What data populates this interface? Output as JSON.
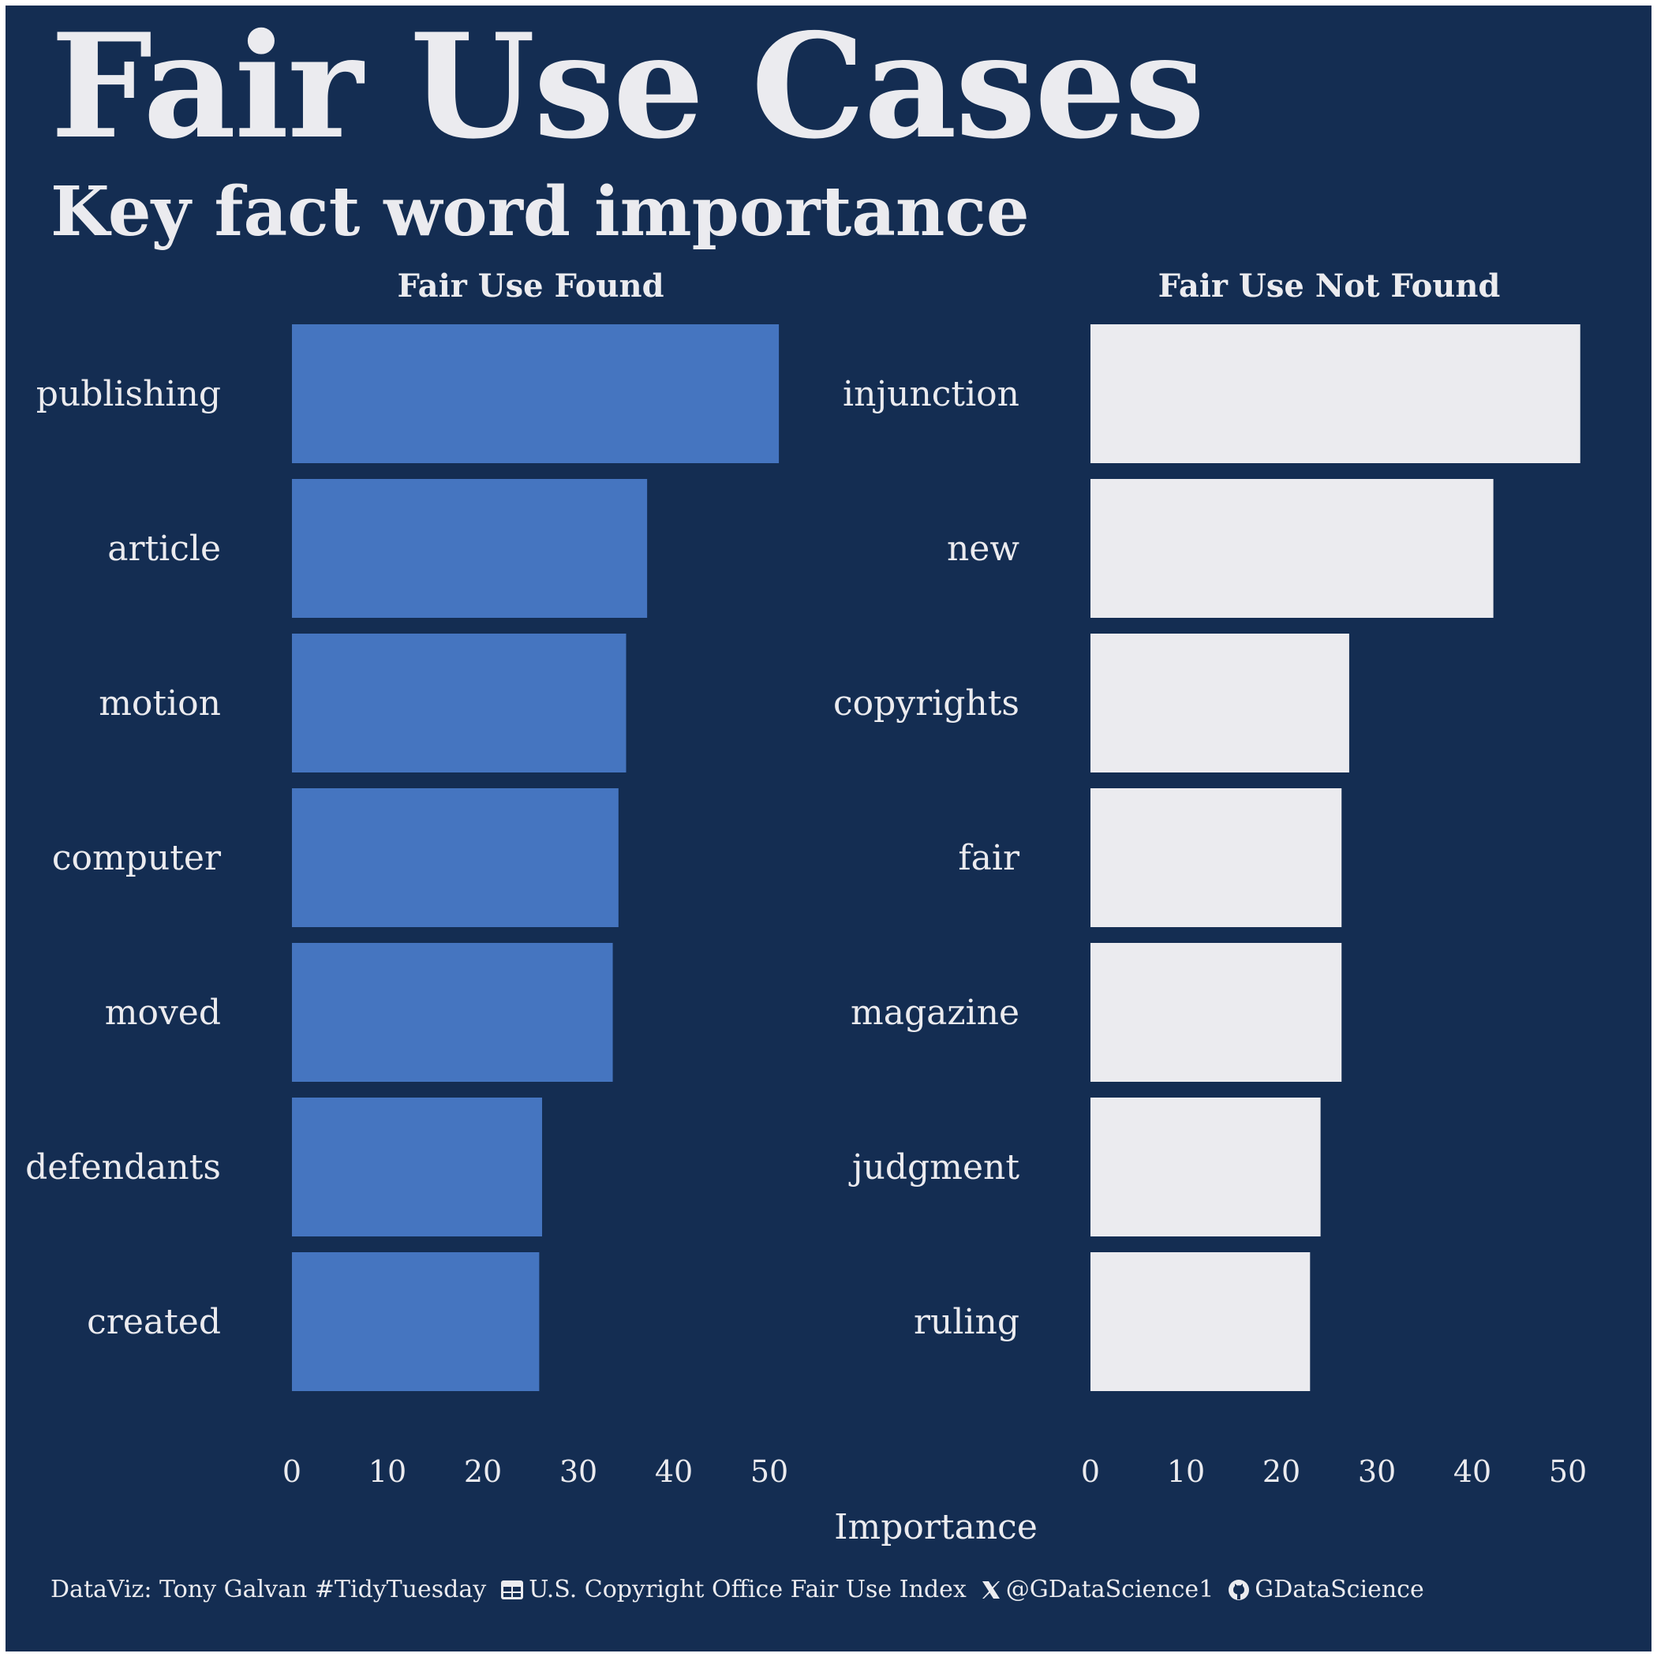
{
  "title": "Fair Use Cases",
  "subtitle": "Key fact word importance",
  "colors": {
    "background": "#142d52",
    "found_bar": "#4575c0",
    "not_found_bar": "#ebebef",
    "text": "#ebebef"
  },
  "caption": {
    "credit": "DataViz: Tony Galvan #TidyTuesday",
    "source": "U.S. Copyright Office Fair Use Index",
    "twitter": "@GDataScience1",
    "github": "GDataScience",
    "source_icon": "table-icon",
    "twitter_icon": "x-logo-icon",
    "github_icon": "github-icon"
  },
  "chart_data": {
    "type": "bar",
    "orientation": "horizontal",
    "xlabel": "Importance",
    "xlim": [
      0,
      50
    ],
    "xticks": [
      0,
      10,
      20,
      30,
      40,
      50
    ],
    "grid": false,
    "facets": [
      {
        "name": "Fair Use Found",
        "color": "#4575c0",
        "categories": [
          "publishing",
          "article",
          "motion",
          "computer",
          "moved",
          "defendants",
          "created"
        ],
        "values": [
          51,
          37.2,
          35,
          34.2,
          33.6,
          26.2,
          25.9
        ]
      },
      {
        "name": "Fair Use Not Found",
        "color": "#ebebef",
        "categories": [
          "injunction",
          "new",
          "copyrights",
          "fair",
          "magazine",
          "judgment",
          "ruling"
        ],
        "values": [
          51.3,
          42.2,
          27.1,
          26.3,
          26.3,
          24.1,
          23
        ]
      }
    ]
  }
}
